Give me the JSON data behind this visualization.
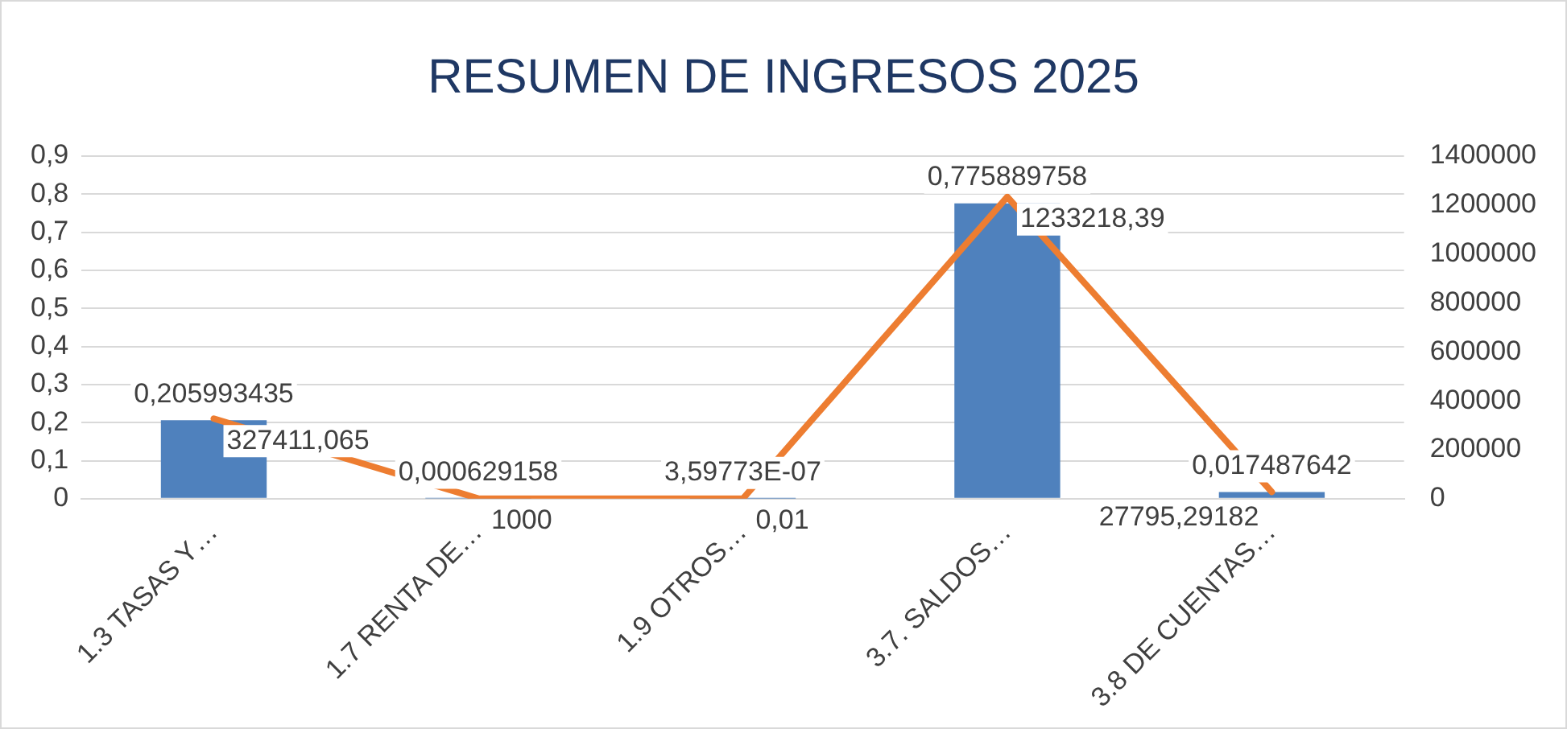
{
  "chart_data": {
    "type": "bar",
    "title": "RESUMEN DE INGRESOS 2025",
    "categories": [
      "1.3 TASAS Y…",
      "1.7 RENTA DE…",
      "1.9 OTROS…",
      "3.7. SALDOS…",
      "3.8 DE CUENTAS…"
    ],
    "series": [
      {
        "color": "#4f81bd",
        "values": [
          0.205993435,
          0.000629158,
          3.59773e-07,
          0.775889758,
          0.017487642
        ],
        "value_labels": [
          "0,205993435",
          "0,000629158",
          "3,59773E-07",
          "0,775889758",
          "0,017487642"
        ]
      },
      {
        "type": "line",
        "axis": "y2",
        "color": "#ed7d31",
        "values": [
          327411.065,
          1000,
          0.01,
          1233218.39,
          27795.29182
        ],
        "value_labels": [
          "327411,065",
          "1000",
          "0,01",
          "1233218,39",
          "27795,29182"
        ]
      }
    ],
    "ylim": [
      0,
      0.9
    ],
    "yticks": [
      0,
      {
        "value": 0.1,
        "label": "0,1"
      },
      {
        "value": 0.2,
        "label": "0,2"
      },
      {
        "value": 0.3,
        "label": "0,3"
      },
      {
        "value": 0.4,
        "label": "0,4"
      },
      {
        "value": 0.5,
        "label": "0,5"
      },
      {
        "value": 0.6,
        "label": "0,6"
      },
      {
        "value": 0.7,
        "label": "0,7"
      },
      {
        "value": 0.8,
        "label": "0,8"
      },
      {
        "value": 0.9,
        "label": "0,9"
      }
    ],
    "y2lim": [
      0,
      1400000
    ],
    "y2ticks": [
      0,
      200000,
      400000,
      600000,
      800000,
      1000000,
      1200000,
      1400000
    ],
    "grid": "y",
    "legend": false,
    "marker": "none"
  }
}
